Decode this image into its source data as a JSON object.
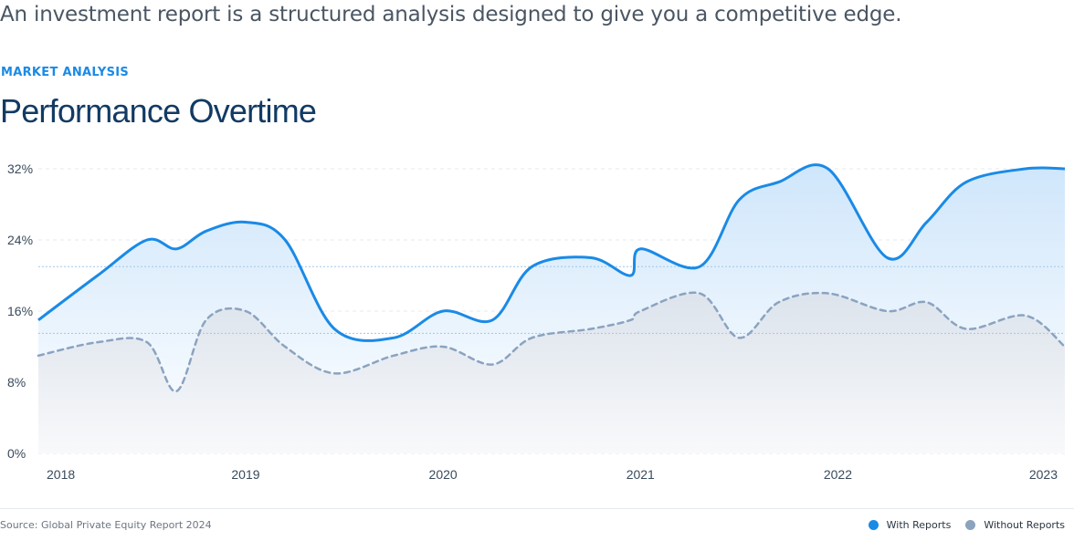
{
  "header": {
    "intro": "An investment report is a structured analysis designed to give you a competitive edge.",
    "eyebrow": "MARKET ANALYSIS",
    "title": "Performance Overtime"
  },
  "footer": {
    "source": "Source: Global Private Equity Report 2024"
  },
  "colors": {
    "with_reports": "#1a8ae6",
    "without_reports": "#8ba3bf"
  },
  "chart_data": {
    "type": "area",
    "x_tick_labels": [
      "2018",
      "2019",
      "2020",
      "2021",
      "2022",
      "2023"
    ],
    "x": [
      2017.95,
      2018.25,
      2018.5,
      2018.65,
      2018.8,
      2019.0,
      2019.2,
      2019.45,
      2019.75,
      2020.0,
      2020.25,
      2020.45,
      2020.75,
      2020.95,
      2021.0,
      2021.3,
      2021.5,
      2021.7,
      2021.95,
      2022.25,
      2022.45,
      2022.65,
      2022.95,
      2023.15
    ],
    "series": [
      {
        "name": "With Reports",
        "style": "solid",
        "values": [
          15,
          20,
          24,
          23,
          25,
          26,
          24,
          14,
          13,
          16,
          15,
          21,
          22,
          20,
          23,
          21,
          28.5,
          30.5,
          32,
          22,
          26,
          30.5,
          32,
          32
        ]
      },
      {
        "name": "Without Reports",
        "style": "dashed",
        "values": [
          11,
          12.5,
          12.5,
          7,
          15,
          16,
          12,
          9,
          11,
          12,
          10,
          13,
          14,
          15,
          16,
          18,
          13,
          17,
          18,
          16,
          17,
          14,
          15.5,
          12
        ]
      }
    ],
    "y_ticks": [
      "0%",
      "8%",
      "16%",
      "24%",
      "32%"
    ],
    "ylim": [
      0,
      32
    ],
    "reference_lines": [
      21,
      13.5
    ],
    "grid": true,
    "legend_position": "bottom-right"
  }
}
